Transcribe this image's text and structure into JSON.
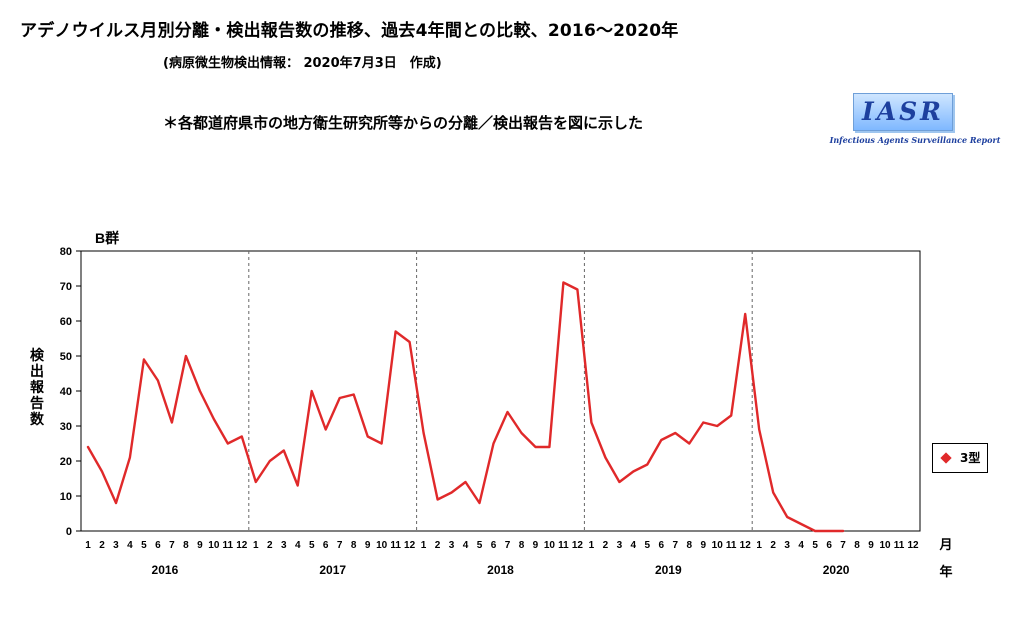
{
  "header": {
    "title": "アデノウイルス月別分離・検出報告数の推移、過去4年間との比較、2016〜2020年",
    "subtitle": "(病原微生物検出情報： 2020年7月3日　作成)",
    "note": "＊各都道府県市の地方衛生研究所等からの分離／検出報告を図に示した"
  },
  "logo": {
    "text": "IASR",
    "caption": "Infectious Agents Surveillance Report"
  },
  "chart_data": {
    "type": "line",
    "title": "B群",
    "ylabel": "検出報告数",
    "month_unit_label": "月",
    "year_unit_label": "年",
    "ylim": [
      0,
      80
    ],
    "yticks": [
      0,
      10,
      20,
      30,
      40,
      50,
      60,
      70,
      80
    ],
    "years": [
      "2016",
      "2017",
      "2018",
      "2019",
      "2020"
    ],
    "months": [
      "1",
      "2",
      "3",
      "4",
      "5",
      "6",
      "7",
      "8",
      "9",
      "10",
      "11",
      "12"
    ],
    "grid": "dashed vertical separators between years",
    "legend_position": "right",
    "series": [
      {
        "name": "3型",
        "color": "#e0292a",
        "values": [
          24,
          17,
          8,
          21,
          49,
          43,
          31,
          50,
          40,
          32,
          25,
          27,
          14,
          20,
          23,
          13,
          40,
          29,
          38,
          39,
          27,
          25,
          57,
          54,
          28,
          9,
          11,
          14,
          8,
          25,
          34,
          28,
          24,
          24,
          71,
          69,
          31,
          21,
          14,
          17,
          19,
          26,
          28,
          25,
          31,
          30,
          33,
          62,
          29,
          11,
          4,
          2,
          0,
          0,
          0,
          null,
          null,
          null,
          null,
          null
        ]
      }
    ]
  }
}
